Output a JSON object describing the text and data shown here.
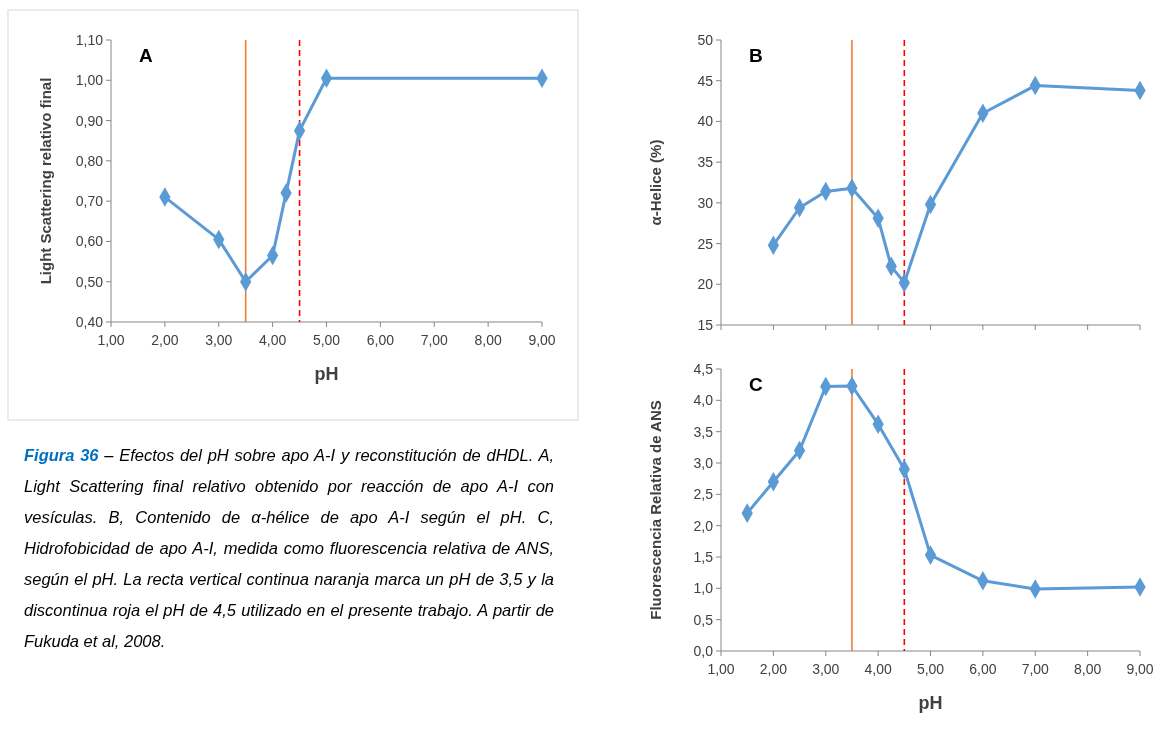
{
  "chart_data": [
    {
      "type": "line",
      "title": "A",
      "xlabel": "pH",
      "ylabel": "Light Scattering relativo final",
      "x": [
        2,
        3,
        3.5,
        4,
        4.25,
        4.5,
        5,
        9
      ],
      "series": [
        {
          "color": "#5b9bd5",
          "values": [
            0.71,
            0.605,
            0.5,
            0.565,
            0.72,
            0.875,
            1.005,
            1.005
          ]
        }
      ],
      "xlim": [
        1,
        9
      ],
      "ylim": [
        0.4,
        1.1
      ],
      "xticks": [
        {
          "value": 1,
          "label": "1,00"
        },
        {
          "value": 2,
          "label": "2,00"
        },
        {
          "value": 3,
          "label": "3,00"
        },
        {
          "value": 4,
          "label": "4,00"
        },
        {
          "value": 5,
          "label": "5,00"
        },
        {
          "value": 6,
          "label": "6,00"
        },
        {
          "value": 7,
          "label": "7,00"
        },
        {
          "value": 8,
          "label": "8,00"
        },
        {
          "value": 9,
          "label": "9,00"
        }
      ],
      "yticks": [
        {
          "value": 0.4,
          "label": "0,40"
        },
        {
          "value": 0.5,
          "label": "0,50"
        },
        {
          "value": 0.6,
          "label": "0,60"
        },
        {
          "value": 0.7,
          "label": "0,70"
        },
        {
          "value": 0.8,
          "label": "0,80"
        },
        {
          "value": 0.9,
          "label": "0,90"
        },
        {
          "value": 1.0,
          "label": "1,00"
        },
        {
          "value": 1.1,
          "label": "1,10"
        }
      ],
      "marker": "diamond",
      "ref_lines": [
        {
          "axis": "x",
          "value": 3.5,
          "color": "#ed7d31",
          "line_style": "solid"
        },
        {
          "axis": "x",
          "value": 4.5,
          "color": "#ff0000",
          "line_style": "dashed"
        }
      ],
      "annotations": [
        "Figura 36",
        "– Efectos del pH sobre apo A-I y reconstitución de dHDL. A, Light Scattering final relativo obtenido por reacción de apo A-I con vesículas. B, Contenido de α-hélice de apo A-I según el pH. C, Hidrofobicidad de apo A-I, medida como fluorescencia relativa de ANS, según el pH. La recta vertical continua naranja marca un pH de 3,5 y la discontinua roja el pH de 4,5 utilizado en el presente trabajo. A partir de Fukuda et al, 2008."
      ]
    },
    {
      "type": "line",
      "title": "B",
      "ylabel": "α-Helice (%)",
      "x": [
        2,
        2.5,
        3,
        3.5,
        4,
        4.25,
        4.5,
        5,
        6,
        7,
        9
      ],
      "series": [
        {
          "color": "#5b9bd5",
          "values": [
            24.8,
            29.4,
            31.4,
            31.8,
            28.1,
            22.2,
            20.2,
            29.8,
            41,
            44.4,
            43.8
          ]
        }
      ],
      "xlim": [
        1,
        9
      ],
      "ylim": [
        15,
        50
      ],
      "xticks": [
        {
          "value": 1,
          "label": null
        },
        {
          "value": 2,
          "label": null
        },
        {
          "value": 3,
          "label": null
        },
        {
          "value": 4,
          "label": null
        },
        {
          "value": 5,
          "label": null
        },
        {
          "value": 6,
          "label": null
        },
        {
          "value": 7,
          "label": null
        },
        {
          "value": 8,
          "label": null
        },
        {
          "value": 9,
          "label": null
        }
      ],
      "yticks": [
        15,
        20,
        25,
        30,
        35,
        40,
        45,
        50
      ],
      "tick_labels": "y",
      "marker": "diamond",
      "ref_lines": [
        {
          "axis": "x",
          "value": 3.5,
          "color": "#ed7d31",
          "line_style": "solid"
        },
        {
          "axis": "x",
          "value": 4.5,
          "color": "#ff0000",
          "line_style": "dashed"
        }
      ]
    },
    {
      "type": "line",
      "title": "C",
      "xlabel": "pH",
      "ylabel": "Fluorescencia Relativa de ANS",
      "x": [
        1.5,
        2,
        2.5,
        3,
        3.5,
        4,
        4.5,
        5,
        6,
        7,
        9
      ],
      "series": [
        {
          "color": "#5b9bd5",
          "values": [
            2.2,
            2.7,
            3.2,
            4.22,
            4.23,
            3.62,
            2.9,
            1.53,
            1.12,
            0.99,
            1.02
          ]
        }
      ],
      "xlim": [
        1,
        9
      ],
      "ylim": [
        0,
        4.5
      ],
      "xticks": [
        {
          "value": 1,
          "label": "1,00"
        },
        {
          "value": 2,
          "label": "2,00"
        },
        {
          "value": 3,
          "label": "3,00"
        },
        {
          "value": 4,
          "label": "4,00"
        },
        {
          "value": 5,
          "label": "5,00"
        },
        {
          "value": 6,
          "label": "6,00"
        },
        {
          "value": 7,
          "label": "7,00"
        },
        {
          "value": 8,
          "label": "8,00"
        },
        {
          "value": 9,
          "label": "9,00"
        }
      ],
      "yticks": [
        {
          "value": 0,
          "label": "0,0"
        },
        {
          "value": 0.5,
          "label": "0,5"
        },
        {
          "value": 1,
          "label": "1,0"
        },
        {
          "value": 1.5,
          "label": "1,5"
        },
        {
          "value": 2,
          "label": "2,0"
        },
        {
          "value": 2.5,
          "label": "2,5"
        },
        {
          "value": 3,
          "label": "3,0"
        },
        {
          "value": 3.5,
          "label": "3,5"
        },
        {
          "value": 4,
          "label": "4,0"
        },
        {
          "value": 4.5,
          "label": "4,5"
        }
      ],
      "marker": "diamond",
      "ref_lines": [
        {
          "axis": "x",
          "value": 3.5,
          "color": "#ed7d31",
          "line_style": "solid"
        },
        {
          "axis": "x",
          "value": 4.5,
          "color": "#ff0000",
          "line_style": "dashed"
        }
      ]
    }
  ]
}
